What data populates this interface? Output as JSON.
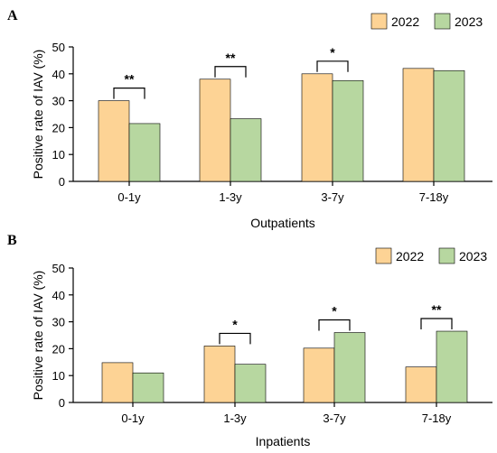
{
  "colors": {
    "series_2022": "#fdd395",
    "series_2023": "#b7d7a0",
    "axis": "#000000",
    "bar_stroke": "#000000"
  },
  "chart_data": [
    {
      "panel": "A",
      "type": "bar",
      "categories": [
        "0-1y",
        "1-3y",
        "3-7y",
        "7-18y"
      ],
      "series": [
        {
          "name": "2022",
          "values": [
            30,
            38,
            40,
            42
          ]
        },
        {
          "name": "2023",
          "values": [
            21.5,
            23.3,
            37.5,
            41.2
          ]
        }
      ],
      "significance": [
        "**",
        "**",
        "*",
        ""
      ],
      "xlabel": "Outpatients",
      "ylabel": "Positive rate of IAV (%)",
      "ylim": [
        0,
        50
      ],
      "yticks": [
        0,
        10,
        20,
        30,
        40,
        50
      ],
      "legend": "top-right",
      "grid": false
    },
    {
      "panel": "B",
      "type": "bar",
      "categories": [
        "0-1y",
        "1-3y",
        "3-7y",
        "7-18y"
      ],
      "series": [
        {
          "name": "2022",
          "values": [
            14.8,
            21,
            20.2,
            13.2
          ]
        },
        {
          "name": "2023",
          "values": [
            11,
            14.2,
            26,
            26.5
          ]
        }
      ],
      "significance": [
        "",
        "*",
        "*",
        "**"
      ],
      "xlabel": "Inpatients",
      "ylabel": "Positive rate of IAV (%)",
      "ylim": [
        0,
        50
      ],
      "yticks": [
        0,
        10,
        20,
        30,
        40,
        50
      ],
      "legend": "top-right",
      "grid": false
    }
  ]
}
